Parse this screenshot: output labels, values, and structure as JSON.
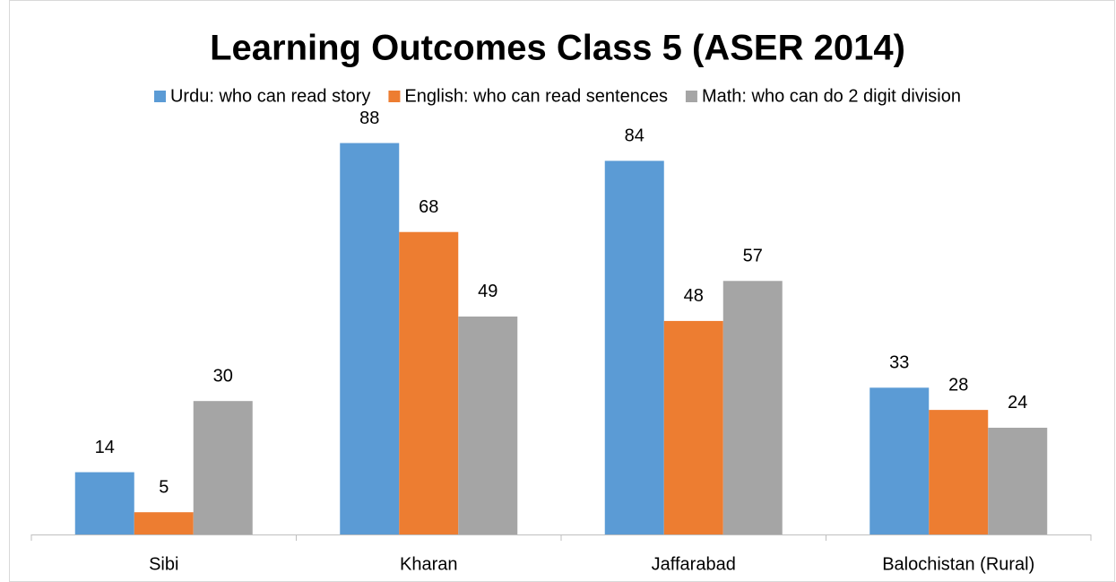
{
  "chart_data": {
    "type": "bar",
    "title": "Learning Outcomes Class 5 (ASER 2014)",
    "categories": [
      "Sibi",
      "Kharan",
      "Jaffarabad",
      "Balochistan (Rural)"
    ],
    "series": [
      {
        "name": "Urdu: who can read story",
        "color": "#5b9bd5",
        "values": [
          14,
          88,
          84,
          33
        ]
      },
      {
        "name": "English: who can read sentences",
        "color": "#ed7d31",
        "values": [
          5,
          68,
          48,
          28
        ]
      },
      {
        "name": "Math: who can do 2 digit division",
        "color": "#a5a5a5",
        "values": [
          30,
          49,
          57,
          24
        ]
      }
    ],
    "ylim": [
      0,
      100
    ]
  }
}
